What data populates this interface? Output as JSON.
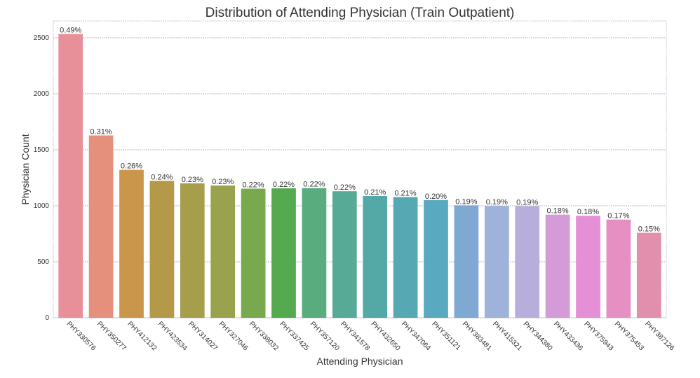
{
  "chart_data": {
    "type": "bar",
    "title": "Distribution of  Attending Physician (Train Outpatient)",
    "xlabel": "Attending Physician",
    "ylabel": "Physician Count",
    "ylim": [
      0,
      2650
    ],
    "yticks": [
      0,
      500,
      1000,
      1500,
      2000,
      2500
    ],
    "grid": true,
    "categories": [
      "PHY330576",
      "PHY350277",
      "PHY412132",
      "PHY423534",
      "PHY314027",
      "PHY327046",
      "PHY338032",
      "PHY337425",
      "PHY357120",
      "PHY341578",
      "PHY432650",
      "PHY347064",
      "PHY351121",
      "PHY383481",
      "PHY415321",
      "PHY344380",
      "PHY433436",
      "PHY375943",
      "PHY375453",
      "PHY387126"
    ],
    "values": [
      2534,
      1628,
      1321,
      1223,
      1201,
      1181,
      1153,
      1156,
      1158,
      1130,
      1088,
      1078,
      1051,
      1004,
      999,
      997,
      921,
      911,
      877,
      759
    ],
    "labels": [
      "0.49%",
      "0.31%",
      "0.26%",
      "0.24%",
      "0.23%",
      "0.23%",
      "0.22%",
      "0.22%",
      "0.22%",
      "0.22%",
      "0.21%",
      "0.21%",
      "0.20%",
      "0.19%",
      "0.19%",
      "0.19%",
      "0.18%",
      "0.18%",
      "0.17%",
      "0.15%"
    ],
    "colors": [
      "#e8909a",
      "#e4907d",
      "#c9964c",
      "#b49a48",
      "#a69e4b",
      "#9aa24e",
      "#78a94f",
      "#55a94f",
      "#58ac7e",
      "#57aa95",
      "#54a9a6",
      "#56a9b2",
      "#59a9c1",
      "#7fa8d3",
      "#9fb2d9",
      "#b8aedb",
      "#d59ad8",
      "#e48fd6",
      "#e58fc3",
      "#e28fad"
    ]
  }
}
